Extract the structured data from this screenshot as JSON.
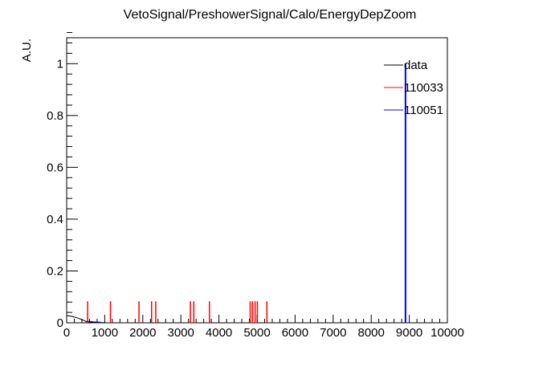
{
  "chart_data": {
    "type": "line",
    "title": "VetoSignal/PreshowerSignal/Calo/EnergyDepZoom",
    "xlabel": "",
    "ylabel": "A.U.",
    "xlim": [
      0,
      10000
    ],
    "ylim": [
      0,
      1.1
    ],
    "x_ticks": [
      0,
      1000,
      2000,
      3000,
      4000,
      5000,
      6000,
      7000,
      8000,
      9000,
      10000
    ],
    "y_ticks": [
      0,
      0.2,
      0.4,
      0.6,
      0.8,
      1
    ],
    "x_tick_labels": [
      "0",
      "1000",
      "2000",
      "3000",
      "4000",
      "5000",
      "6000",
      "7000",
      "8000",
      "9000",
      "10000"
    ],
    "y_tick_labels": [
      "0",
      "0.2",
      "0.4",
      "0.6",
      "0.8",
      "1"
    ],
    "legend_position": "top-right",
    "series": [
      {
        "name": "data",
        "color": "#000000",
        "style": "line",
        "points": [
          [
            0,
            0.028
          ],
          [
            100,
            0.026
          ],
          [
            200,
            0.022
          ],
          [
            300,
            0.018
          ],
          [
            400,
            0.012
          ],
          [
            500,
            0.006
          ],
          [
            600,
            0.003
          ],
          [
            700,
            0.002
          ],
          [
            800,
            0.002
          ],
          [
            900,
            0.001
          ],
          [
            1000,
            0.001
          ]
        ]
      },
      {
        "name": "110033",
        "color": "#ff0000",
        "style": "spikes",
        "spikes": [
          [
            550,
            0.083
          ],
          [
            1150,
            0.083
          ],
          [
            1900,
            0.083
          ],
          [
            2230,
            0.083
          ],
          [
            2340,
            0.083
          ],
          [
            3250,
            0.083
          ],
          [
            3340,
            0.083
          ],
          [
            3750,
            0.083
          ],
          [
            4820,
            0.083
          ],
          [
            4880,
            0.083
          ],
          [
            4950,
            0.083
          ],
          [
            5010,
            0.083
          ],
          [
            5260,
            0.083
          ],
          [
            8900,
            0.083
          ]
        ]
      },
      {
        "name": "110051",
        "color": "#0000ff",
        "style": "spikes",
        "spikes": [
          [
            8900,
            1.0
          ]
        ],
        "points": [
          [
            500,
            0.004
          ],
          [
            600,
            0.006
          ],
          [
            700,
            0.004
          ],
          [
            800,
            0.003
          ],
          [
            900,
            0.002
          ]
        ]
      }
    ]
  }
}
